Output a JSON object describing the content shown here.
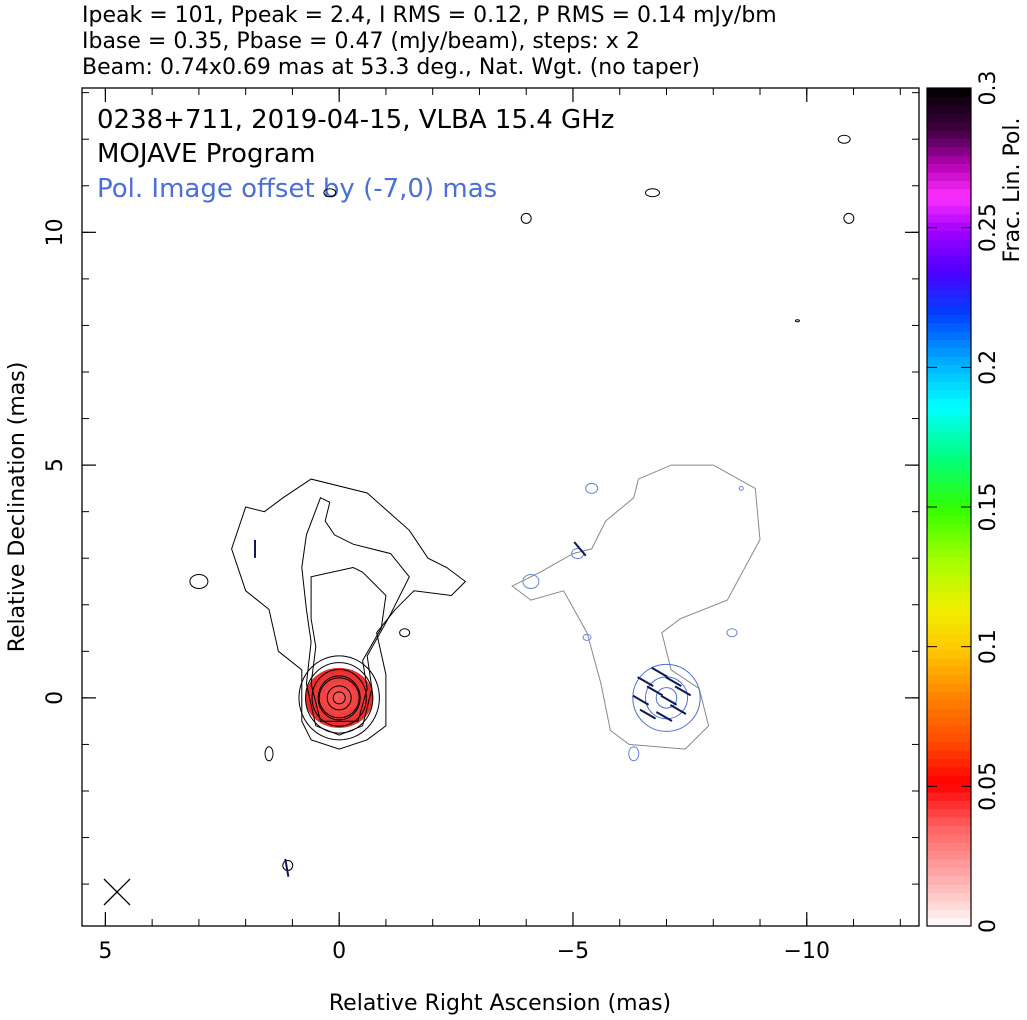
{
  "header": {
    "line1": "Ipeak = 101, Ppeak = 2.4, I RMS = 0.12, P RMS = 0.14 mJy/bm",
    "line2": "Ibase = 0.35, Pbase = 0.47 (mJy/beam), steps: x 2",
    "line3": "Beam: 0.74x0.69 mas at 53.3 deg., Nat. Wgt. (no taper)"
  },
  "annotations": {
    "source_line": "0238+711, 2019-04-15, VLBA 15.4 GHz",
    "program_line": "MOJAVE Program",
    "offset_line": "Pol. Image offset by (-7,0) mas",
    "offset_color": "#4a6fd6"
  },
  "chart_data": {
    "type": "contour",
    "title": "",
    "xlabel": "Relative Right Ascension (mas)",
    "ylabel": "Relative Declination (mas)",
    "xlim": [
      5.5,
      -12.4
    ],
    "ylim": [
      -4.9,
      13.1
    ],
    "x_ticks": [
      {
        "v": 5,
        "label": "5"
      },
      {
        "v": 0,
        "label": "0"
      },
      {
        "v": -5,
        "label": "−5"
      },
      {
        "v": -10,
        "label": "−10"
      }
    ],
    "y_ticks": [
      {
        "v": 0,
        "label": "0"
      },
      {
        "v": 5,
        "label": "5"
      },
      {
        "v": 10,
        "label": "10"
      }
    ],
    "colorbar": {
      "label": "Frac. Lin. Pol.",
      "range": [
        0,
        0.3
      ],
      "ticks": [
        {
          "v": 0,
          "label": "0"
        },
        {
          "v": 0.05,
          "label": "0.05"
        },
        {
          "v": 0.1,
          "label": "0.1"
        },
        {
          "v": 0.15,
          "label": "0.15"
        },
        {
          "v": 0.2,
          "label": "0.2"
        },
        {
          "v": 0.25,
          "label": "0.25"
        },
        {
          "v": 0.3,
          "label": "0.3"
        }
      ]
    },
    "core_position": [
      0,
      0
    ],
    "polarization_image_offset_mas": [
      -7,
      0
    ],
    "beam": {
      "major_mas": 0.74,
      "minor_mas": 0.69,
      "pa_deg": 53.3
    },
    "total_intensity_contours": [
      {
        "label": "outer",
        "points": [
          [
            -1.9,
            3.0
          ],
          [
            -1.5,
            3.6
          ],
          [
            -0.6,
            4.4
          ],
          [
            0.6,
            4.7
          ],
          [
            1.2,
            4.3
          ],
          [
            1.6,
            4.0
          ],
          [
            2.0,
            4.1
          ],
          [
            2.3,
            3.2
          ],
          [
            2.0,
            2.3
          ],
          [
            1.5,
            1.9
          ],
          [
            1.3,
            1.0
          ],
          [
            0.8,
            0.6
          ],
          [
            0.8,
            -0.5
          ],
          [
            0.6,
            -0.9
          ],
          [
            0.0,
            -1.1
          ],
          [
            -0.6,
            -0.9
          ],
          [
            -1.0,
            -0.6
          ],
          [
            -1.0,
            0.5
          ],
          [
            -0.8,
            1.4
          ],
          [
            -1.2,
            1.9
          ],
          [
            -1.6,
            2.3
          ],
          [
            -2.4,
            2.2
          ],
          [
            -2.7,
            2.5
          ],
          [
            -2.3,
            2.8
          ],
          [
            -1.9,
            3.0
          ]
        ]
      },
      {
        "label": "level2",
        "points": [
          [
            0.4,
            4.3
          ],
          [
            0.7,
            3.5
          ],
          [
            0.8,
            2.8
          ],
          [
            0.7,
            1.9
          ],
          [
            0.6,
            1.2
          ],
          [
            0.7,
            0.3
          ],
          [
            0.5,
            -0.6
          ],
          [
            0.0,
            -0.8
          ],
          [
            -0.5,
            -0.6
          ],
          [
            -0.7,
            0.2
          ],
          [
            -0.6,
            0.9
          ],
          [
            -1.1,
            1.8
          ],
          [
            -1.5,
            2.6
          ],
          [
            -1.1,
            3.1
          ],
          [
            -0.3,
            3.3
          ],
          [
            0.1,
            3.5
          ],
          [
            0.3,
            3.8
          ],
          [
            0.2,
            4.2
          ],
          [
            0.4,
            4.3
          ]
        ]
      },
      {
        "label": "level3",
        "points": [
          [
            -0.3,
            2.8
          ],
          [
            0.6,
            2.6
          ],
          [
            0.6,
            1.7
          ],
          [
            0.5,
            1.1
          ],
          [
            0.6,
            0.3
          ],
          [
            0.4,
            -0.5
          ],
          [
            -0.4,
            -0.5
          ],
          [
            -0.6,
            0.2
          ],
          [
            -0.5,
            0.8
          ],
          [
            -0.9,
            1.5
          ],
          [
            -1.0,
            2.2
          ],
          [
            -0.5,
            2.7
          ],
          [
            -0.3,
            2.8
          ]
        ]
      }
    ],
    "core_contour_radii_mas": [
      0.45,
      0.58,
      0.72,
      0.86
    ],
    "pol_total_contour": {
      "points": [
        [
          -5.4,
          3.2
        ],
        [
          -5.7,
          3.8
        ],
        [
          -6.3,
          4.3
        ],
        [
          -6.4,
          4.7
        ],
        [
          -7.1,
          5.0
        ],
        [
          -8.0,
          5.0
        ],
        [
          -8.9,
          4.5
        ],
        [
          -9.0,
          3.4
        ],
        [
          -8.3,
          2.1
        ],
        [
          -7.3,
          1.7
        ],
        [
          -6.9,
          1.4
        ],
        [
          -7.1,
          0.6
        ],
        [
          -7.7,
          0.2
        ],
        [
          -7.9,
          -0.6
        ],
        [
          -7.4,
          -1.1
        ],
        [
          -6.2,
          -1.0
        ],
        [
          -5.8,
          -0.7
        ],
        [
          -5.6,
          0.3
        ],
        [
          -5.3,
          1.4
        ],
        [
          -4.8,
          2.3
        ],
        [
          -4.1,
          2.1
        ],
        [
          -3.7,
          2.4
        ],
        [
          -4.3,
          2.7
        ],
        [
          -5.0,
          3.1
        ],
        [
          -5.4,
          3.2
        ]
      ]
    },
    "pol_contour_radii_mas": [
      0.22,
      0.45,
      0.72
    ],
    "evpa_ticks": [
      {
        "x": -6.55,
        "y": 0.35,
        "angle": 60
      },
      {
        "x": -6.85,
        "y": 0.55,
        "angle": 60
      },
      {
        "x": -7.15,
        "y": 0.35,
        "angle": 60
      },
      {
        "x": -6.45,
        "y": -0.05,
        "angle": 60
      },
      {
        "x": -6.75,
        "y": 0.15,
        "angle": 60
      },
      {
        "x": -7.05,
        "y": -0.05,
        "angle": 60
      },
      {
        "x": -7.35,
        "y": 0.15,
        "angle": 60
      },
      {
        "x": -6.6,
        "y": -0.35,
        "angle": 60
      },
      {
        "x": -6.95,
        "y": -0.4,
        "angle": 60
      },
      {
        "x": -7.25,
        "y": -0.25,
        "angle": 60
      },
      {
        "x": -5.15,
        "y": 3.2,
        "angle": 40
      },
      {
        "x": 1.8,
        "y": 3.2,
        "angle": 0
      },
      {
        "x": 1.12,
        "y": -3.65,
        "angle": 10
      }
    ],
    "fractional_polarization_core": 0.03
  }
}
